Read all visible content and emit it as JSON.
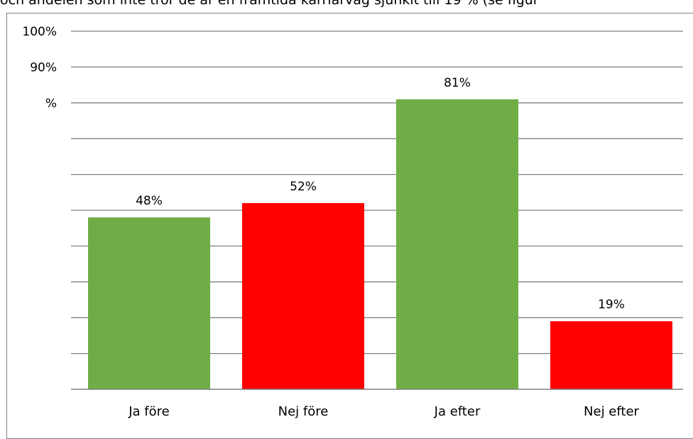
{
  "caption": "och andelen som inte tror de är en framtida karriärväg sjunkit till 19 % (se figur",
  "chart_data": {
    "type": "bar",
    "categories": [
      "Ja före",
      "Nej före",
      "Ja efter",
      "Nej efter"
    ],
    "values": [
      48,
      52,
      81,
      19
    ],
    "data_labels": [
      "48%",
      "52%",
      "81%",
      "19%"
    ],
    "bar_colors": [
      "#70AD47",
      "#FF0000",
      "#70AD47",
      "#FF0000"
    ],
    "y_tick_labels": [
      {
        "value": 100,
        "label": "100%"
      },
      {
        "value": 90,
        "label": "90%"
      },
      {
        "value": 80,
        "label": "%"
      }
    ],
    "ylim": [
      0,
      100
    ],
    "gridline_step": 10,
    "grid": true,
    "title": "",
    "xlabel": "",
    "ylabel": ""
  },
  "colors": {
    "gridline": "#808080",
    "axis": "#808080"
  }
}
